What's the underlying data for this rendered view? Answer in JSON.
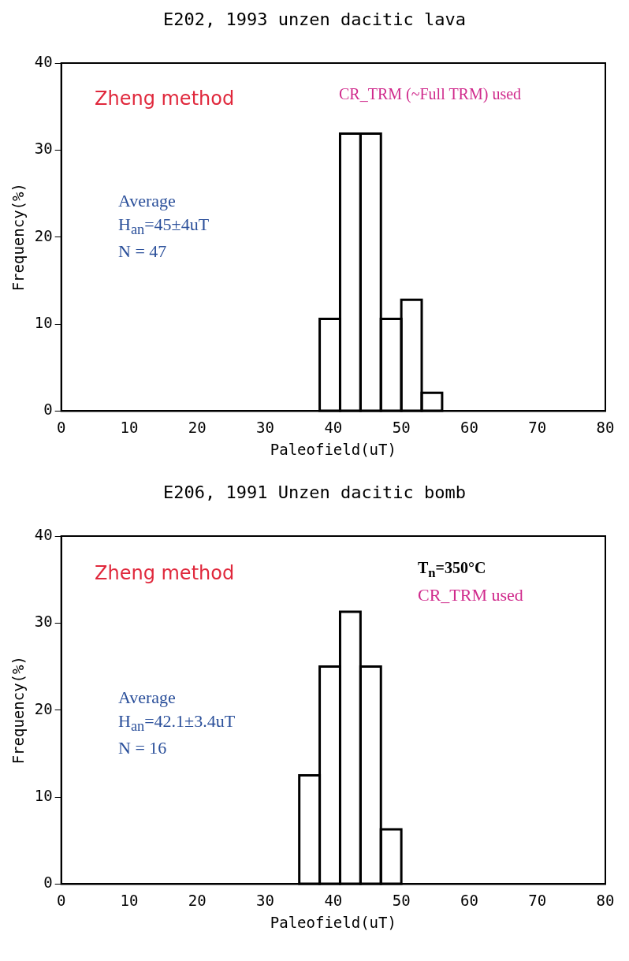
{
  "chart_data": [
    {
      "type": "histogram",
      "title": "E202, 1993 unzen dacitic lava",
      "xlabel": "Paleofield(uT)",
      "ylabel": "Frequency(%)",
      "bins": [
        38,
        41,
        44,
        47,
        50,
        53,
        56
      ],
      "values": [
        10.6,
        31.9,
        31.9,
        10.6,
        12.8,
        2.1
      ],
      "color": "#ffffff",
      "xlim": [
        0,
        80
      ],
      "xticks": [
        0,
        10,
        20,
        30,
        40,
        50,
        60,
        70,
        80
      ],
      "ylim": [
        0,
        40
      ],
      "yticks": [
        0,
        10,
        20,
        30,
        40
      ],
      "grid": false,
      "legend": false,
      "annotations": [
        "Zheng method",
        "CR_TRM (~Full TRM) used",
        "Average",
        "H$_{an}$=45±4uT",
        "N = 47"
      ]
    },
    {
      "type": "histogram",
      "title": "E206, 1991 Unzen dacitic bomb",
      "xlabel": "Paleofield(uT)",
      "ylabel": "Frequency(%)",
      "bins": [
        35,
        38,
        41,
        44,
        47,
        50
      ],
      "values": [
        12.5,
        25,
        31.3,
        25,
        6.3
      ],
      "color": "#ffffff",
      "xlim": [
        0,
        80
      ],
      "xticks": [
        0,
        10,
        20,
        30,
        40,
        50,
        60,
        70,
        80
      ],
      "ylim": [
        0,
        40
      ],
      "yticks": [
        0,
        10,
        20,
        30,
        40
      ],
      "grid": false,
      "legend": false,
      "annotations": [
        "Zheng method",
        "T$_{n}$=350°C",
        "CR_TRM  used",
        "Average",
        "H$_{an}$=42.1±3.4uT",
        "N = 16"
      ]
    }
  ]
}
